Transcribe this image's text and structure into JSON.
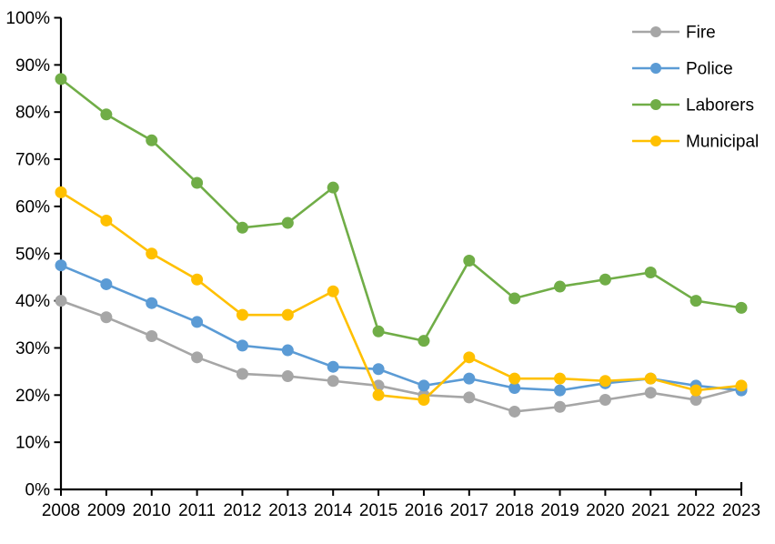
{
  "chart_data": {
    "type": "line",
    "categories": [
      "2008",
      "2009",
      "2010",
      "2011",
      "2012",
      "2013",
      "2014",
      "2015",
      "2016",
      "2017",
      "2018",
      "2019",
      "2020",
      "2021",
      "2022",
      "2023"
    ],
    "series": [
      {
        "name": "Fire",
        "color": "#A6A6A6",
        "values": [
          40,
          36.5,
          32.5,
          28,
          24.5,
          24,
          23,
          22,
          20,
          19.5,
          16.5,
          17.5,
          19,
          20.5,
          19,
          21.5
        ]
      },
      {
        "name": "Police",
        "color": "#5B9BD5",
        "values": [
          47.5,
          43.5,
          39.5,
          35.5,
          30.5,
          29.5,
          26,
          25.5,
          22,
          23.5,
          21.5,
          21,
          22.5,
          23.5,
          22,
          21
        ]
      },
      {
        "name": "Laborers",
        "color": "#70AD47",
        "values": [
          87,
          79.5,
          74,
          65,
          55.5,
          56.5,
          64,
          33.5,
          31.5,
          48.5,
          40.5,
          43,
          44.5,
          46,
          40,
          38.5
        ]
      },
      {
        "name": "Municipal",
        "color": "#FFC000",
        "values": [
          63,
          57,
          50,
          44.5,
          37,
          37,
          42,
          20,
          19,
          28,
          23.5,
          23.5,
          23,
          23.5,
          21,
          22
        ]
      }
    ],
    "xlabel": "",
    "ylabel": "",
    "ylim": [
      0,
      100
    ],
    "ytick_step": 10,
    "ytick_labels": [
      "0%",
      "10%",
      "20%",
      "30%",
      "40%",
      "50%",
      "60%",
      "70%",
      "80%",
      "90%",
      "100%"
    ],
    "grid": false,
    "legend_position": "top-right",
    "axis_color": "#000000",
    "background": "#FFFFFF",
    "marker": "circle"
  }
}
